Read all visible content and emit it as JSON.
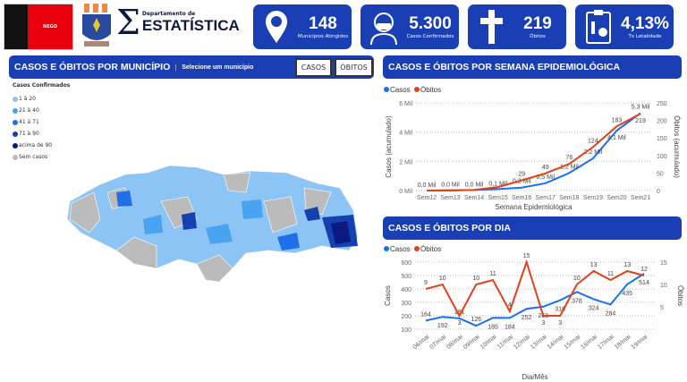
{
  "header": {
    "flag_text": "NEGO",
    "dept_small": "Departamento de",
    "dept_big": "ESTATÍSTICA"
  },
  "cards": [
    {
      "icon": "map-pin-icon",
      "value": "148",
      "label": "Municípios Atingidos"
    },
    {
      "icon": "masked-person-icon",
      "value": "5.300",
      "label": "Casos Confirmados"
    },
    {
      "icon": "cross-icon",
      "value": "219",
      "label": "Óbitos"
    },
    {
      "icon": "clipboard-skull-icon",
      "value": "4,13%",
      "label": "Tx Letalidade"
    }
  ],
  "map_panel": {
    "title": "CASOS E ÓBITOS POR MUNICÍPIO",
    "subtitle": "Selecione um município",
    "btn_casos": "CASOS",
    "btn_obitos": "ÓBITOS",
    "legend_title": "Casos Confirmados",
    "legend": [
      {
        "label": "1 à 20",
        "color": "#8cc4f5"
      },
      {
        "label": "21 à 40",
        "color": "#4aa3f0"
      },
      {
        "label": "41 à 71",
        "color": "#1f6fe8"
      },
      {
        "label": "71 à 90",
        "color": "#1540b0"
      },
      {
        "label": "acima de 90",
        "color": "#0b1a80"
      },
      {
        "label": "Sem casos",
        "color": "#bbbbbb"
      }
    ]
  },
  "weekly": {
    "title": "CASOS E ÓBITOS POR SEMANA EPIDEMIOLÓGICA"
  },
  "daily": {
    "title": "CASOS E ÓBITOS POR DIA"
  },
  "chart_data": [
    {
      "type": "line",
      "xlabel": "Semana Epidemiológica",
      "ylabel": "Casos (acumulado)",
      "y2label": "Óbitos (acumulado)",
      "categories": [
        "Sem12",
        "Sem13",
        "Sem14",
        "Sem15",
        "Sem16",
        "Sem17",
        "Sem18",
        "Sem19",
        "Sem20",
        "Sem21"
      ],
      "ylim": [
        0,
        6000
      ],
      "y2lim": [
        0,
        250
      ],
      "yticks": [
        "0 Mil",
        "2 Mil",
        "4 Mil",
        "6 Mil"
      ],
      "y2ticks": [
        "0",
        "50",
        "100",
        "150",
        "200",
        "250"
      ],
      "series": [
        {
          "name": "Casos",
          "color": "#1a6ff0",
          "values": [
            0,
            20,
            40,
            100,
            200,
            500,
            1200,
            2200,
            4100,
            5300
          ],
          "labels": [
            "0,0 Mil",
            "0,0 Mil",
            "0,0 Mil",
            "0,1 Mil",
            "0,2 Mil",
            "0,5 Mil",
            "1,2 Mil",
            "2,2 Mil",
            "4,1 Mil",
            "5,3 Mil"
          ]
        },
        {
          "name": "Óbitos",
          "color": "#e0401a",
          "values": [
            0,
            0,
            2,
            10,
            29,
            49,
            76,
            124,
            183,
            219
          ],
          "labels": [
            "",
            "",
            "",
            "",
            "29",
            "49",
            "76",
            "124",
            "183",
            "219"
          ]
        }
      ],
      "legend": "top-left",
      "grid": true
    },
    {
      "type": "line",
      "xlabel": "Dia/Mês",
      "ylabel": "Casos",
      "y2label": "Óbitos",
      "categories": [
        "06/mai",
        "07/mai",
        "08/mai",
        "09/mai",
        "10/mai",
        "11/mai",
        "12/mai",
        "13/mai",
        "14/mai",
        "15/mai",
        "16/mai",
        "17/mai",
        "18/mai",
        "19/mai"
      ],
      "ylim": [
        100,
        600
      ],
      "y2lim": [
        0,
        15
      ],
      "yticks": [
        "100",
        "200",
        "300",
        "400",
        "500",
        "600"
      ],
      "y2ticks": [
        "5",
        "10",
        "15"
      ],
      "series": [
        {
          "name": "Casos",
          "color": "#1a6ff0",
          "values": [
            164,
            192,
            181,
            126,
            185,
            184,
            252,
            268,
            316,
            378,
            324,
            284,
            435,
            514
          ]
        },
        {
          "name": "Óbitos",
          "color": "#e0401a",
          "values": [
            9,
            10,
            3,
            10,
            11,
            4,
            15,
            3,
            3,
            10,
            13,
            11,
            13,
            12
          ]
        }
      ],
      "legend": "top-left",
      "grid": true
    }
  ]
}
